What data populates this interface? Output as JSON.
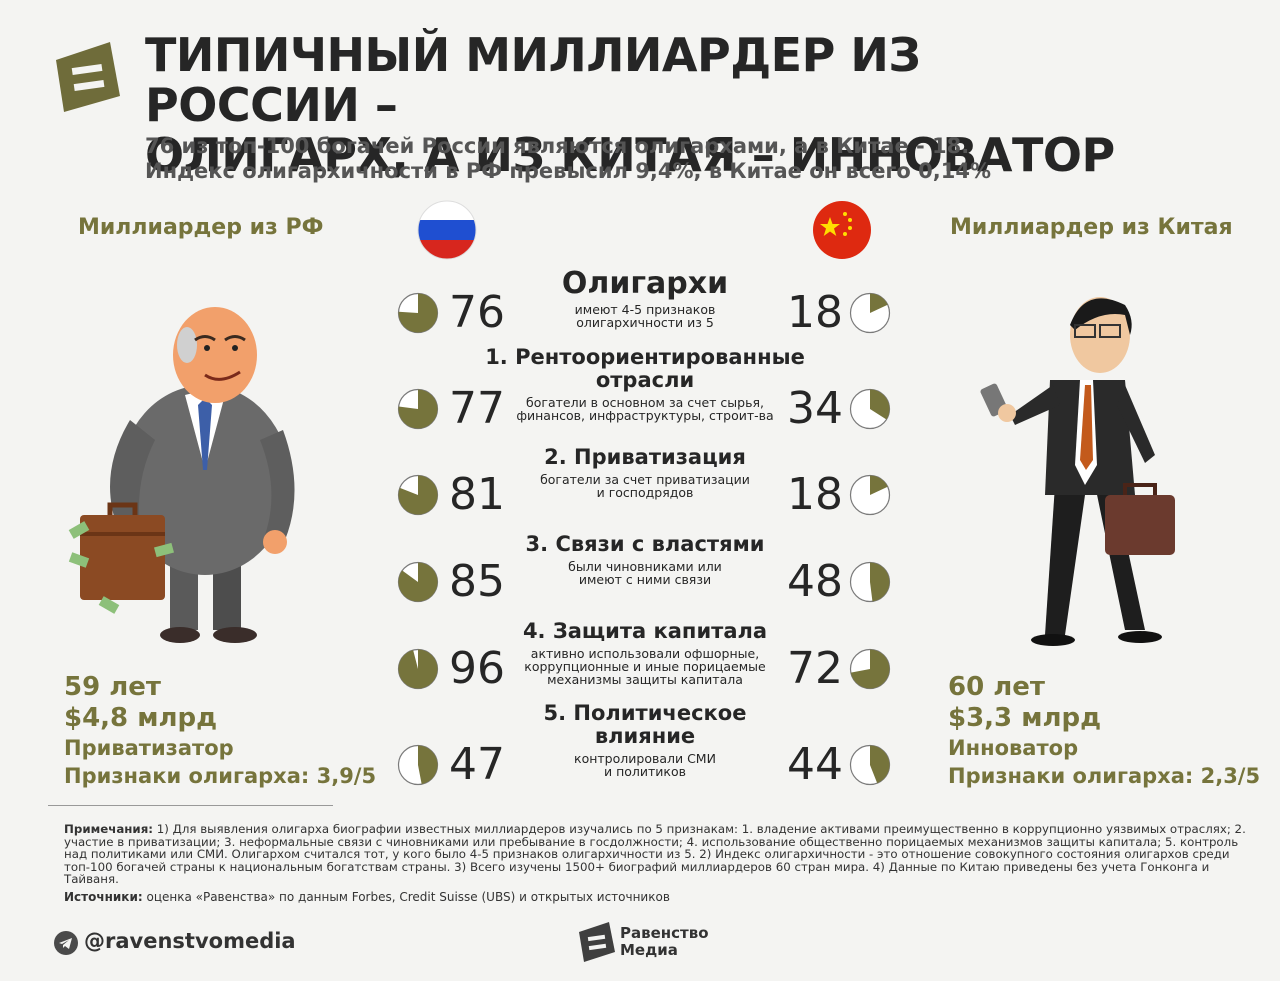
{
  "header": {
    "title_line1": "ТИПИЧНЫЙ МИЛЛИАРДЕР ИЗ РОССИИ –",
    "title_line2": "ОЛИГАРХ, А ИЗ КИТАЯ – ИННОВАТОР",
    "subtitle_line1": "76 из топ-100 богачей России являются олигархами, а в Китае - 18.",
    "subtitle_line2": "Индекс олигархичности в РФ превысил 9,4%, в Китае он всего 0,14%"
  },
  "left": {
    "title": "Миллиардер из РФ",
    "age": "59 лет",
    "wealth": "$4,8 млрд",
    "type": "Приватизатор",
    "signs": "Признаки олигарха: 3,9/5"
  },
  "right": {
    "title": "Миллиардер из Китая",
    "age": "60 лет",
    "wealth": "$3,3 млрд",
    "type": "Инноватор",
    "signs": "Признаки олигарха: 2,3/5"
  },
  "chart_data": {
    "type": "table",
    "unit": "из топ-100",
    "series": [
      {
        "name": "Россия",
        "color": "#76743c",
        "values": [
          76,
          77,
          81,
          85,
          96,
          47
        ]
      },
      {
        "name": "Китай",
        "color": "#76743c",
        "values": [
          18,
          34,
          18,
          48,
          72,
          44
        ]
      }
    ],
    "categories": [
      {
        "title": "Олигархи",
        "desc1": "имеют 4-5 признаков",
        "desc2": "олигархичности из 5",
        "desc3": ""
      },
      {
        "title": "1. Рентоориентированные отрасли",
        "desc1": "богатели в основном за счет сырья,",
        "desc2": "финансов, инфраструктуры, строит-ва",
        "desc3": ""
      },
      {
        "title": "2. Приватизация",
        "desc1": "богатели за счет приватизации",
        "desc2": "и господрядов",
        "desc3": ""
      },
      {
        "title": "3. Связи с властями",
        "desc1": "были чиновниками или",
        "desc2": "имеют с ними связи",
        "desc3": ""
      },
      {
        "title": "4. Защита капитала",
        "desc1": "активно использовали офшорные,",
        "desc2": "коррупционные и иные порицаемые",
        "desc3": "механизмы защиты капитала"
      },
      {
        "title": "5. Политическое влияние",
        "desc1": "контролировали СМИ",
        "desc2": "и политиков",
        "desc3": ""
      }
    ],
    "cat_title_lines": [
      [
        "Олигархи",
        ""
      ],
      [
        "1. Рентоориентированные",
        "отрасли"
      ],
      [
        "2. Приватизация",
        ""
      ],
      [
        "3. Связи с властями",
        ""
      ],
      [
        "4. Защита капитала",
        ""
      ],
      [
        "5. Политическое",
        "влияние"
      ]
    ]
  },
  "footer": {
    "notes_label": "Примечания:",
    "notes_text": " 1) Для выявления олигарха биографии известных миллиардеров изучались по 5 признакам: 1. владение активами преимущественно в коррупционно уязвимых отраслях; 2. участие в приватизации; 3. неформальные связи с чиновниками или пребывание в госдолжности; 4. использование общественно порицаемых механизмов защиты капитала; 5. контроль над политиками или СМИ. Олигархом считался тот, у кого было 4-5 признаков олигархичности из 5. 2) Индекс олигархичности - это отношение совокупного состояния олигархов среди топ-100 богачей страны к национальным богатствам страны. 3) Всего изучены 1500+ биографий миллиардеров 60 стран мира. 4) Данные по Китаю приведены без учета Гонконга и Тайваня.",
    "sources_label": "Источники:",
    "sources_text": " оценка «Равенства» по данным Forbes, Credit Suisse (UBS) и открытых источников",
    "handle": "@ravenstvomedia",
    "brand_line1": "Равенство",
    "brand_line2": "Медиа"
  },
  "icons": {
    "logo": "equals-logo-icon",
    "flag_ru": "russia-flag-icon",
    "flag_cn": "china-flag-icon",
    "telegram": "telegram-icon"
  }
}
